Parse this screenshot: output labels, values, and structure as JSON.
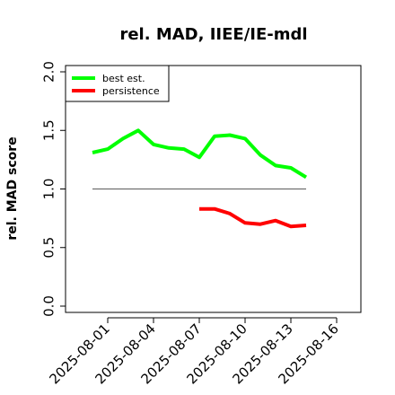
{
  "chart_data": {
    "type": "line",
    "title": "rel. MAD, IIEE/IE-mdl",
    "xlabel": "",
    "ylabel": "rel. MAD score",
    "x_ticks": [
      "2025-08-01",
      "2025-08-04",
      "2025-08-07",
      "2025-08-10",
      "2025-08-13",
      "2025-08-16"
    ],
    "y_ticks": [
      "0.0",
      "0.5",
      "1.0",
      "1.5",
      "2.0"
    ],
    "ylim": [
      0,
      2.0
    ],
    "legend_position": "top-left",
    "reference_line": {
      "y": 1.0,
      "x_start": "2025-07-31",
      "x_end": "2025-08-14"
    },
    "series": [
      {
        "name": "best est.",
        "color": "#00ff00",
        "x": [
          "2025-07-31",
          "2025-08-01",
          "2025-08-02",
          "2025-08-03",
          "2025-08-04",
          "2025-08-05",
          "2025-08-06",
          "2025-08-07",
          "2025-08-08",
          "2025-08-09",
          "2025-08-10",
          "2025-08-11",
          "2025-08-12",
          "2025-08-13",
          "2025-08-14"
        ],
        "values": [
          1.31,
          1.34,
          1.43,
          1.5,
          1.38,
          1.35,
          1.34,
          1.27,
          1.45,
          1.46,
          1.43,
          1.29,
          1.2,
          1.18,
          1.1
        ]
      },
      {
        "name": "persistence",
        "color": "#ff0000",
        "x": [
          "2025-08-07",
          "2025-08-08",
          "2025-08-09",
          "2025-08-10",
          "2025-08-11",
          "2025-08-12",
          "2025-08-13",
          "2025-08-14"
        ],
        "values": [
          0.83,
          0.83,
          0.79,
          0.71,
          0.7,
          0.73,
          0.68,
          0.69
        ]
      }
    ]
  }
}
